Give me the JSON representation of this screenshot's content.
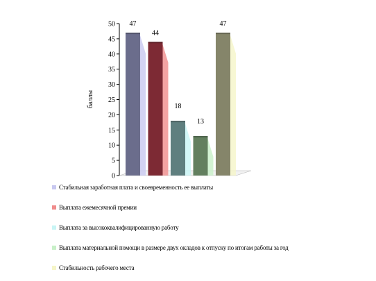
{
  "chart_data": {
    "type": "bar",
    "title": "",
    "xlabel": "",
    "ylabel": "баллы",
    "ylim": [
      0,
      50
    ],
    "yticks": [
      0,
      5,
      10,
      15,
      20,
      25,
      30,
      35,
      40,
      45,
      50
    ],
    "grid": false,
    "legend_position": "bottom",
    "series": [
      {
        "name": "Стабильная заработная плата и своевременность ее выплаты",
        "value": 47,
        "color": "#6b6d8c",
        "shadow": "#c8c8f0"
      },
      {
        "name": "Выплата ежемесячной премии",
        "value": 44,
        "color": "#7d2a34",
        "shadow": "#f08c8c"
      },
      {
        "name": "Выплата за высококвалифицированную работу",
        "value": 18,
        "color": "#5f7f7f",
        "shadow": "#c8f5f5"
      },
      {
        "name": "Выплата материальной помощи в размере двух окладов к отпуску по итогам работы за год",
        "value": 13,
        "color": "#63805f",
        "shadow": "#c8f0c8"
      },
      {
        "name": "Стабильность рабочего места",
        "value": 47,
        "color": "#85856a",
        "shadow": "#f5f5c8"
      }
    ]
  }
}
